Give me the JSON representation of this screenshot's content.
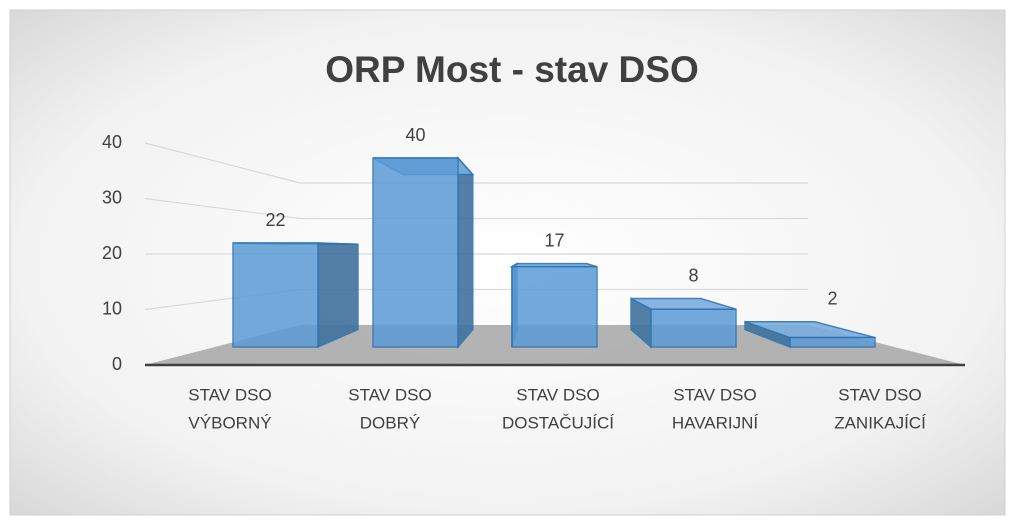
{
  "chart_data": {
    "type": "bar3d",
    "title": "ORP Most - stav DSO",
    "categories": [
      [
        "STAV DSO",
        "VÝBORNÝ"
      ],
      [
        "STAV DSO",
        "DOBRÝ"
      ],
      [
        "STAV DSO",
        "DOSTAČUJÍCÍ"
      ],
      [
        "STAV DSO",
        "HAVARIJNÍ"
      ],
      [
        "STAV DSO",
        "ZANIKAJÍCÍ"
      ]
    ],
    "values": [
      22,
      40,
      17,
      8,
      2
    ],
    "color": "#5b9bd5",
    "ylim": [
      0,
      40
    ],
    "yticks": [
      0,
      10,
      20,
      30,
      40
    ],
    "grid": true
  }
}
